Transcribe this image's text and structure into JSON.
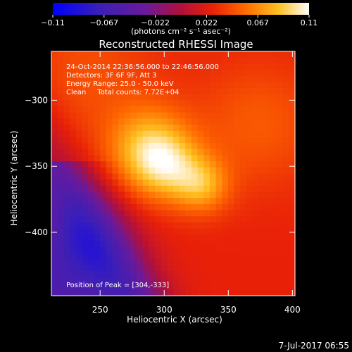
{
  "chart_data": {
    "type": "heatmap",
    "title": "Reconstructed RHESSI Image",
    "xlabel": "Heliocentric X (arcsec)",
    "ylabel": "Heliocentric Y (arcsec)",
    "xlim": [
      212,
      402
    ],
    "ylim": [
      -448,
      -263
    ],
    "x_ticks": [
      250,
      300,
      350,
      400
    ],
    "y_ticks": [
      -300,
      -350,
      -400
    ],
    "colorbar": {
      "unit_label": "(photons cm⁻² s⁻¹ asec⁻²)",
      "range": [
        -0.11,
        0.11
      ],
      "ticks": [
        "−0.11",
        "−0.067",
        "−0.022",
        "0.022",
        "0.067",
        "0.11"
      ],
      "colormap": "blue-purple-red-orange-yellow-white"
    },
    "annotations": [
      "24-Oct-2014 22:36:56.000 to 22:46:56.000",
      "Detectors: 3F 6F 9F, Att 3",
      "Energy Range: 25.0 - 50.0 keV",
      "Clean     Total counts: 7.72E+04"
    ],
    "peak_label": "Position of Peak = [304,-333]",
    "peak": [
      304,
      -333
    ],
    "footer_date": "7-Jul-2017 06:55"
  },
  "colors": {
    "background": "#000000",
    "text": "#ffffff"
  }
}
